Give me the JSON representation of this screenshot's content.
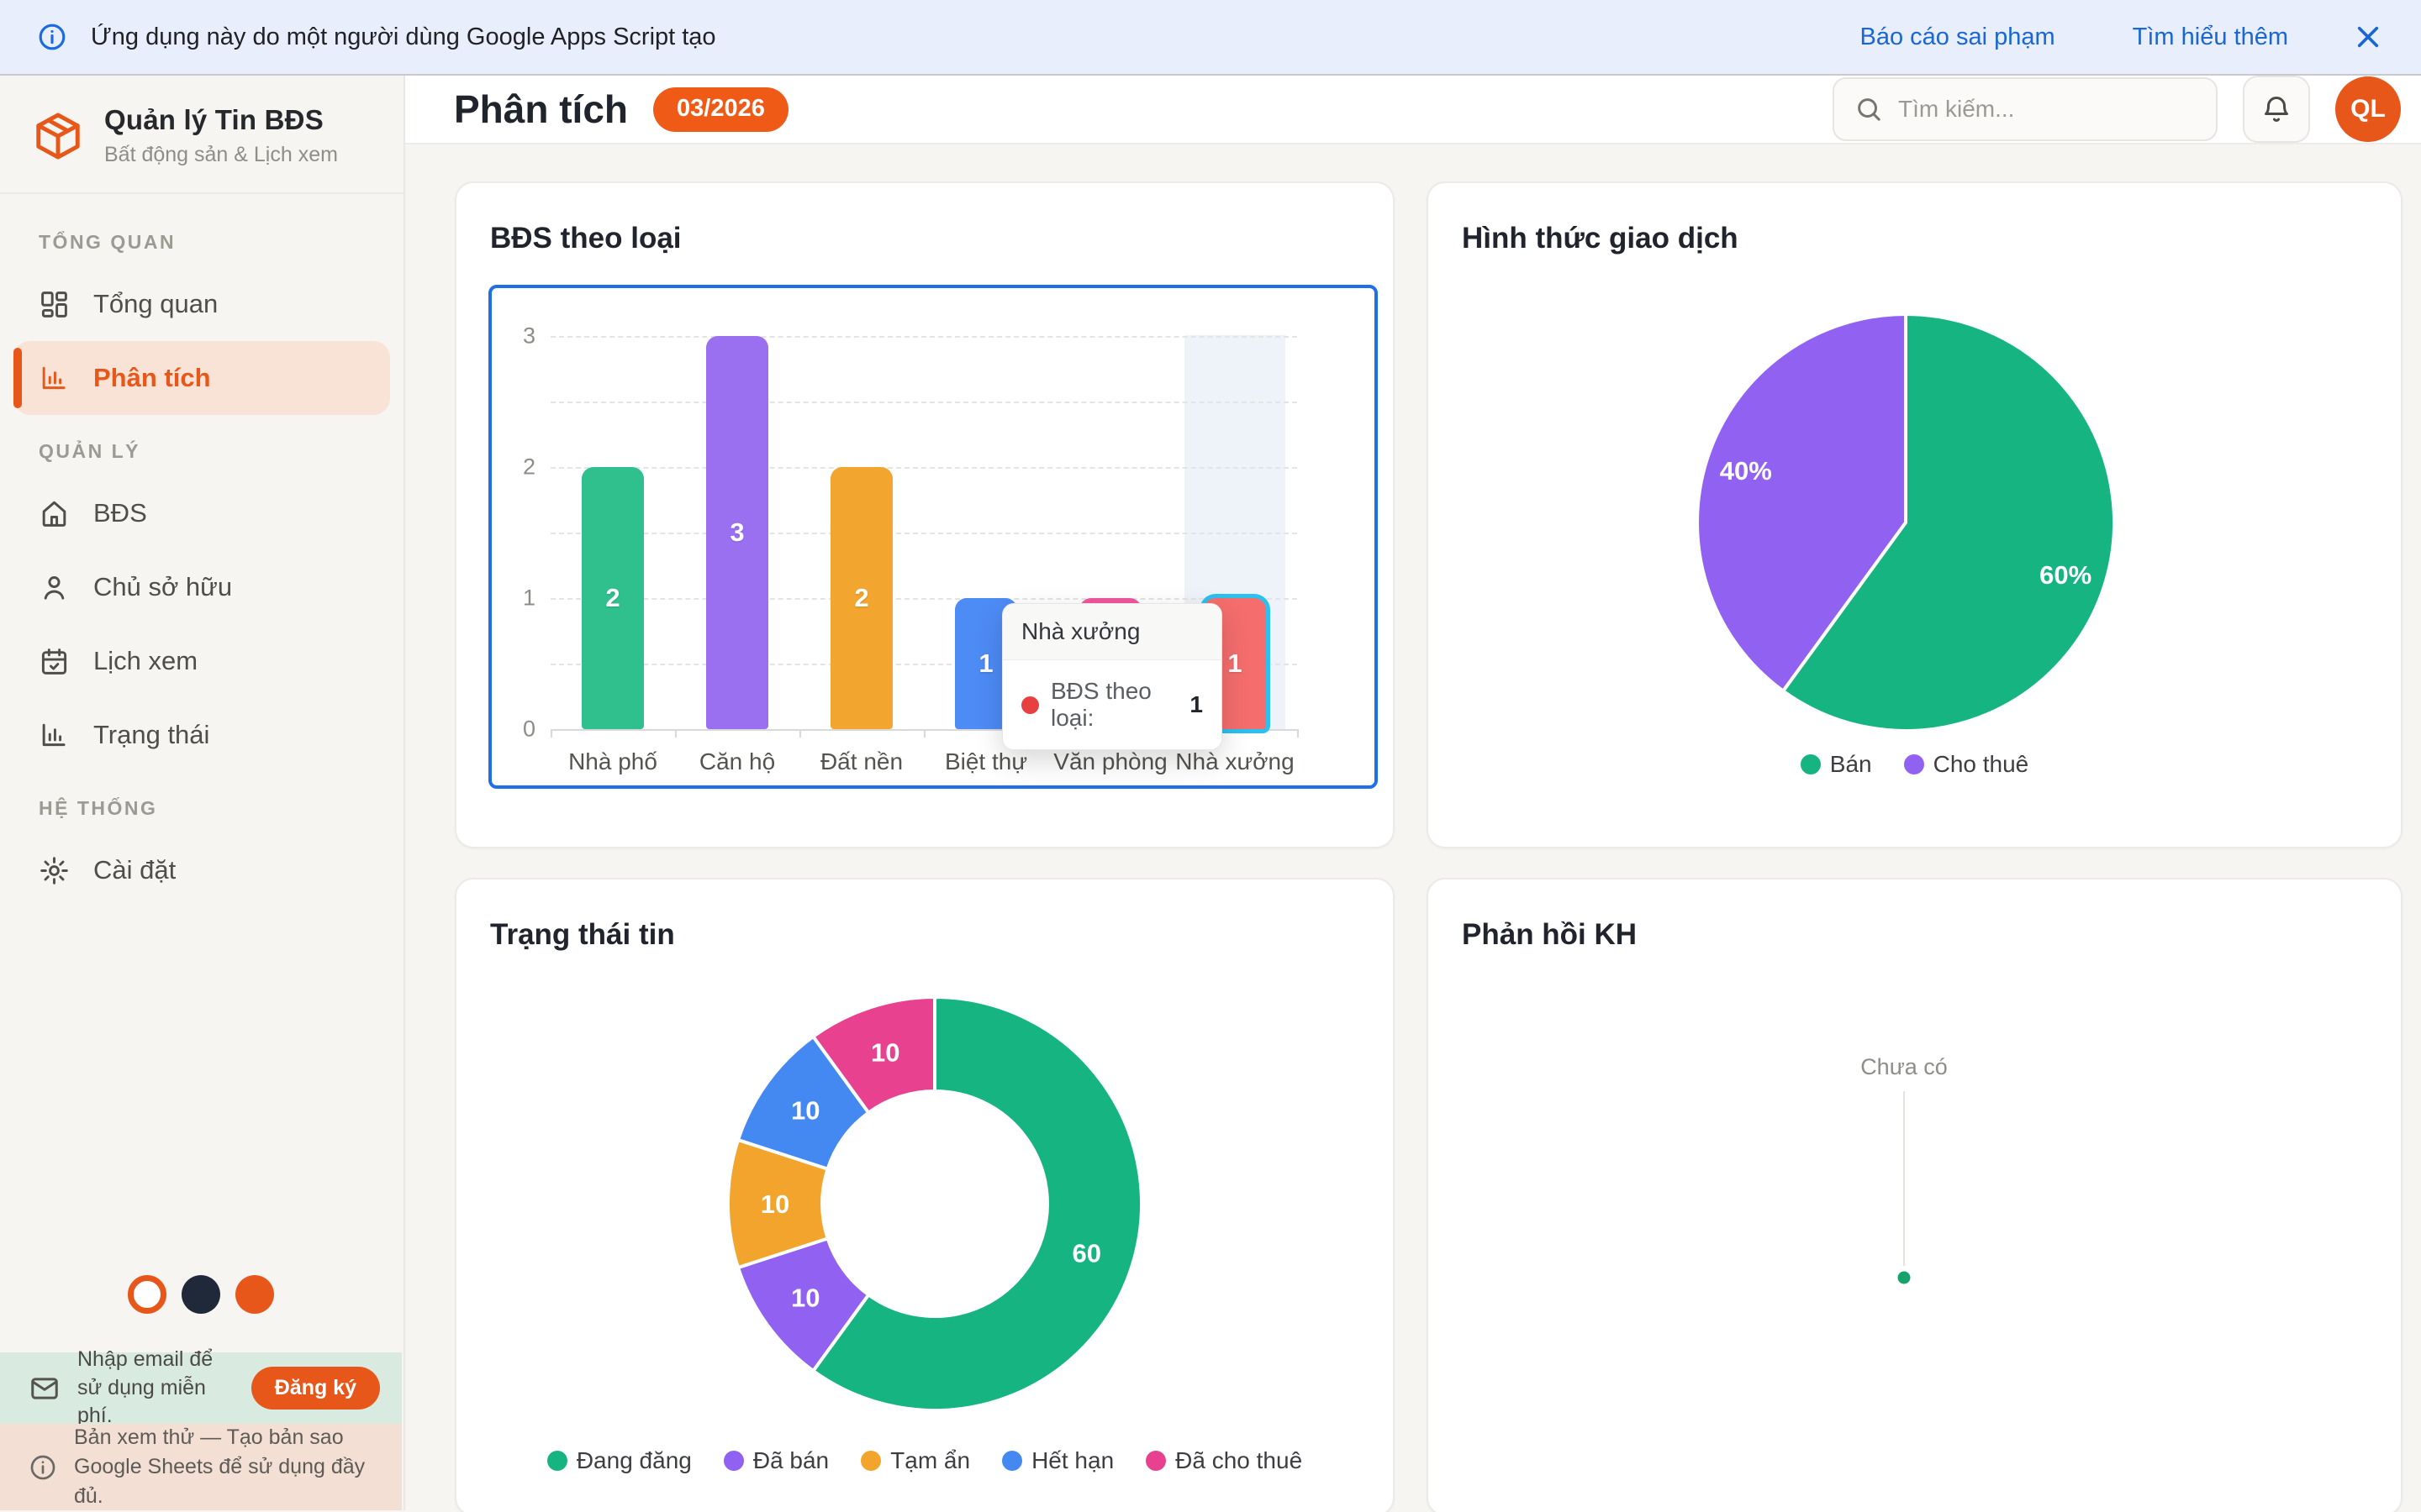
{
  "banner": {
    "text": "Ứng dụng này do một người dùng Google Apps Script tạo",
    "links": [
      "Báo cáo sai phạm",
      "Tìm hiểu thêm"
    ]
  },
  "sidebar": {
    "app_title": "Quản lý Tin BĐS",
    "app_subtitle": "Bất động sản & Lịch xem",
    "sections": [
      {
        "label": "TỔNG QUAN",
        "items": [
          {
            "label": "Tổng quan",
            "icon": "dashboard-icon",
            "active": false
          },
          {
            "label": "Phân tích",
            "icon": "analytics-icon",
            "active": true
          }
        ]
      },
      {
        "label": "QUẢN LÝ",
        "items": [
          {
            "label": "BĐS",
            "icon": "home-icon",
            "active": false
          },
          {
            "label": "Chủ sở hữu",
            "icon": "user-icon",
            "active": false
          },
          {
            "label": "Lịch xem",
            "icon": "calendar-icon",
            "active": false
          },
          {
            "label": "Trạng thái",
            "icon": "status-icon",
            "active": false
          }
        ]
      },
      {
        "label": "HỆ THỐNG",
        "items": [
          {
            "label": "Cài đặt",
            "icon": "gear-icon",
            "active": false
          }
        ]
      }
    ],
    "theme_colors": {
      "light": "#FFFFFF",
      "dark": "#20293A",
      "orange": "#E8571A"
    },
    "email_banner": {
      "text": "Nhập email để sử dụng miễn phí.",
      "button": "Đăng ký"
    },
    "trial_note": "Bản xem thử — Tạo bản sao Google Sheets để sử dụng đầy đủ."
  },
  "header": {
    "title": "Phân tích",
    "badge": "03/2026",
    "search_placeholder": "Tìm kiếm...",
    "avatar_initials": "QL"
  },
  "accent_color": "#E8571A",
  "chart_data": [
    {
      "type": "bar",
      "title": "BĐS theo loại",
      "categories": [
        "Nhà phố",
        "Căn hộ",
        "Đất nền",
        "Biệt thự",
        "Văn phòng",
        "Nhà xưởng"
      ],
      "values": [
        2,
        3,
        2,
        1,
        1,
        1
      ],
      "value_labels": [
        "2",
        "3",
        "2",
        "1",
        "1",
        "1"
      ],
      "bar_colors": [
        "#2FC08D",
        "#9A70F0",
        "#F2A52F",
        "#4D8BF5",
        "#F0569F",
        "#F56D6D"
      ],
      "ylim": [
        0,
        3
      ],
      "yticks": [
        0,
        1,
        2,
        3
      ],
      "grid": "horizontal-dashed",
      "focus_border_color": "#1E6FE8",
      "highlighted_index": 5,
      "highlight_outline_color": "#2BC0F0",
      "tooltip": {
        "title": "Nhà xưởng",
        "series": "BĐS theo loại:",
        "value": "1",
        "marker_color": "#E84040"
      }
    },
    {
      "type": "pie",
      "title": "Hình thức giao dịch",
      "labels": [
        "Bán",
        "Cho thuê"
      ],
      "values": [
        60,
        40
      ],
      "slice_labels": [
        "60%",
        "40%"
      ],
      "colors": [
        "#16B481",
        "#9161F2"
      ],
      "legend_position": "bottom"
    },
    {
      "type": "donut",
      "title": "Trạng thái tin",
      "labels": [
        "Đang đăng",
        "Đã bán",
        "Tạm ẩn",
        "Hết hạn",
        "Đã cho thuê"
      ],
      "values": [
        60,
        10,
        10,
        10,
        10
      ],
      "slice_labels": [
        "60",
        "10",
        "10",
        "10",
        "10"
      ],
      "colors": [
        "#16B481",
        "#9161F2",
        "#F2A42C",
        "#4489F2",
        "#E8418F"
      ],
      "legend_position": "bottom"
    },
    {
      "type": "pie",
      "title": "Phản hồi KH",
      "values": [],
      "empty": true,
      "empty_label": "Chưa có",
      "point_color": "#16A36B"
    }
  ]
}
